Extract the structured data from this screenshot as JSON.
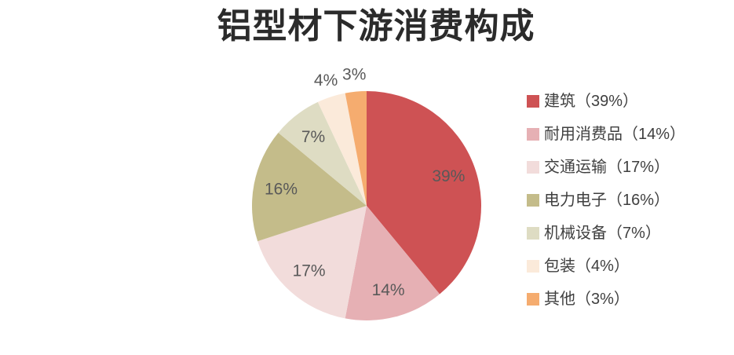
{
  "title": "铝型材下游消费构成",
  "chart_data": {
    "type": "pie",
    "title": "铝型材下游消费构成",
    "start_angle_deg": 0,
    "direction": "clockwise",
    "legend_position": "right",
    "data_label_color": "#595959",
    "slices": [
      {
        "label": "建筑",
        "value": 39,
        "pct_label": "39%",
        "legend_label": "建筑（39%）",
        "color": "#CE5254"
      },
      {
        "label": "耐用消费品",
        "value": 14,
        "pct_label": "14%",
        "legend_label": "耐用消费品（14%）",
        "color": "#E6B0B4"
      },
      {
        "label": "交通运输",
        "value": 17,
        "pct_label": "17%",
        "legend_label": "交通运输（17%）",
        "color": "#F2DCDB"
      },
      {
        "label": "电力电子",
        "value": 16,
        "pct_label": "16%",
        "legend_label": "电力电子（16%）",
        "color": "#C4BC8A"
      },
      {
        "label": "机械设备",
        "value": 7,
        "pct_label": "7%",
        "legend_label": "机械设备（7%）",
        "color": "#DEDCC3"
      },
      {
        "label": "包装",
        "value": 4,
        "pct_label": "4%",
        "legend_label": "包装（4%）",
        "color": "#FBEADA"
      },
      {
        "label": "其他",
        "value": 3,
        "pct_label": "3%",
        "legend_label": "其他（3%）",
        "color": "#F5AC6F"
      }
    ]
  }
}
